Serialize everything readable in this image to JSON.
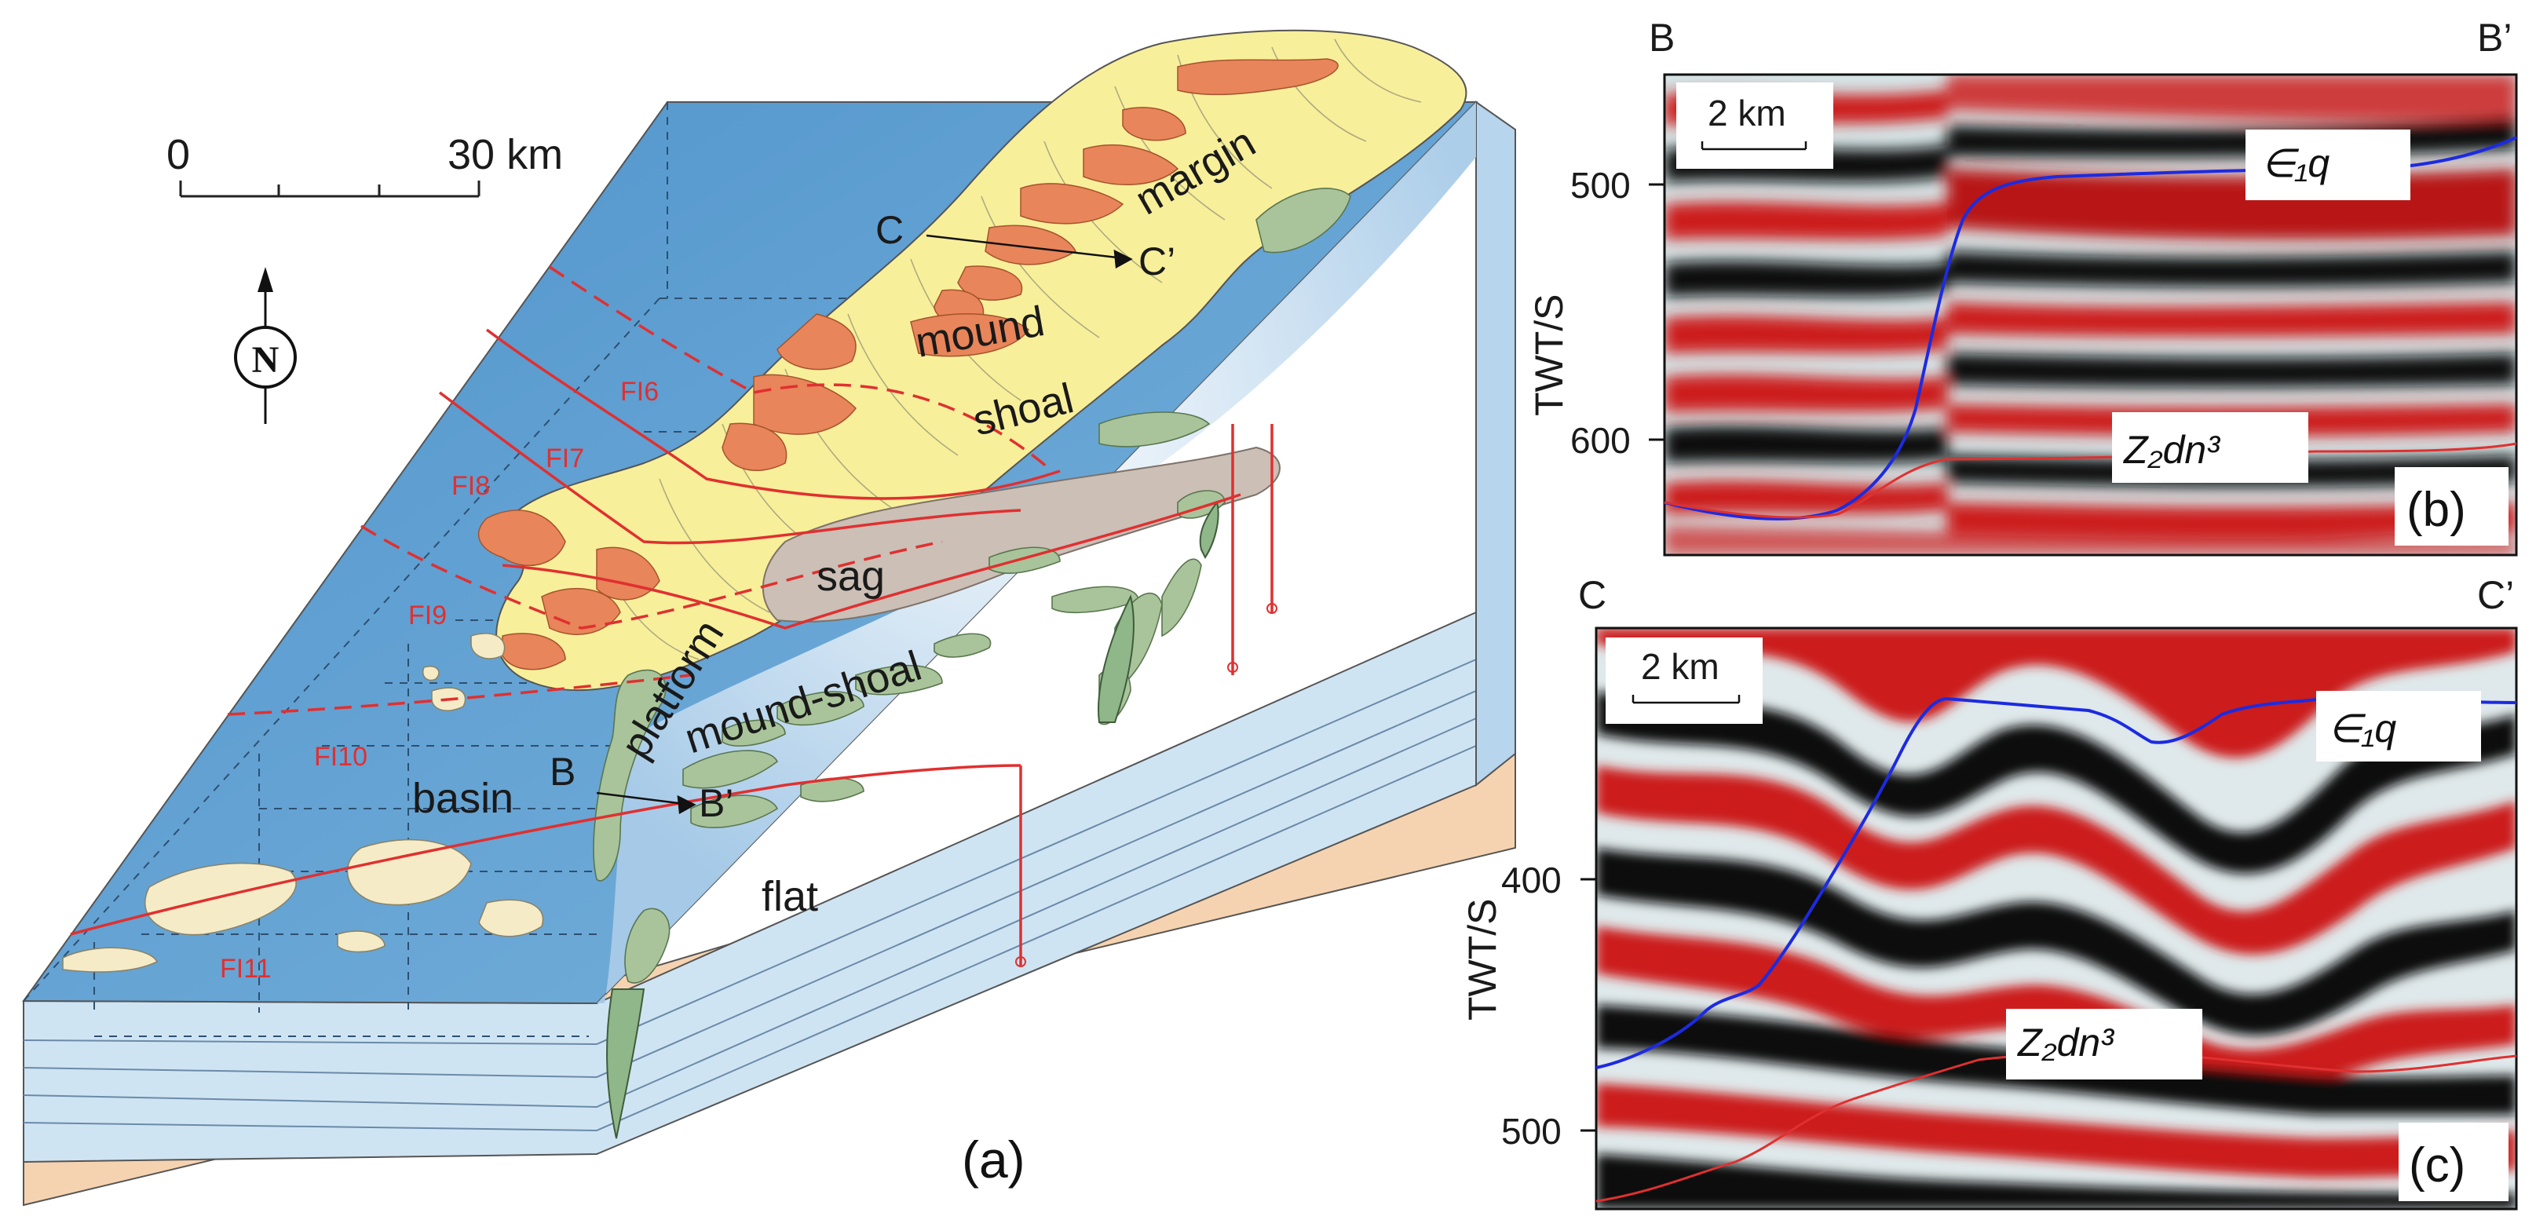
{
  "panel_a": {
    "panel_label": "(a)",
    "scale": {
      "start": "0",
      "end": "30 km"
    },
    "north": "N",
    "faults": [
      "FI6",
      "FI7",
      "FI8",
      "FI9",
      "FI10",
      "FI11"
    ],
    "facies": {
      "margin": "margin",
      "mound": "mound",
      "shoal": "shoal",
      "sag": "sag",
      "platform": "platform",
      "mound_shoal": "mound-shoal",
      "basin": "basin",
      "flat": "flat"
    },
    "sections": {
      "c": "C",
      "c_prime": "C’",
      "b": "B",
      "b_prime": "B’"
    }
  },
  "panel_b": {
    "panel_label": "(b)",
    "left_corner": "B",
    "right_corner": "B’",
    "scale": "2 km",
    "y_axis": "TWT/S",
    "ticks": [
      "500",
      "600"
    ],
    "top_horizon": "∈₁q",
    "bottom_horizon": "Z₂dn³"
  },
  "panel_c": {
    "panel_label": "(c)",
    "left_corner": "C",
    "right_corner": "C’",
    "scale": "2 km",
    "y_axis": "TWT/S",
    "ticks": [
      "400",
      "500"
    ],
    "top_horizon": "∈₁q",
    "bottom_horizon": "Z₂dn³"
  },
  "colors": {
    "basin": "#5b9fd2",
    "margin_shoal": "#f8ef9a",
    "mound": "#e8855a",
    "sag": "#cbbfb6",
    "green_mound": "#a9c49a",
    "side_tan": "#f6d3b0",
    "fault_red": "#e03030",
    "horizon_blue": "#1c2be0",
    "seismic_red": "#cc1f1f"
  }
}
